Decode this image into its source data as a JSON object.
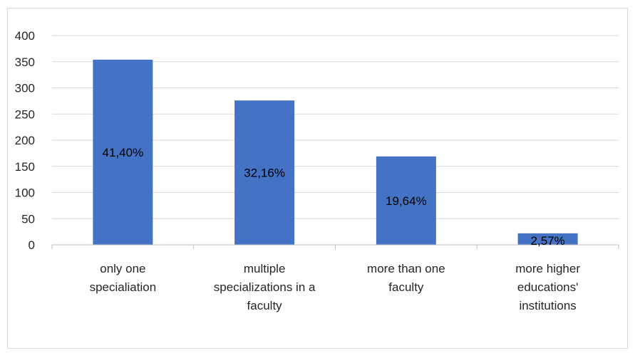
{
  "chart_data": {
    "type": "bar",
    "categories": [
      [
        "only one",
        "specialiation"
      ],
      [
        "multiple",
        "specializations in a",
        "faculty"
      ],
      [
        "more than one",
        "faculty"
      ],
      [
        "more higher",
        "educations'",
        "institutions"
      ]
    ],
    "values": [
      354,
      276,
      169,
      22
    ],
    "data_labels": [
      "41,40%",
      "32,16%",
      "19,64%",
      "2,57%"
    ],
    "ylim": [
      0,
      400
    ],
    "yticks": [
      0,
      50,
      100,
      150,
      200,
      250,
      300,
      350,
      400
    ],
    "grid": true,
    "legend": "none",
    "title": "",
    "xlabel": "",
    "ylabel": "",
    "colors": {
      "bar": "#4472c4",
      "grid": "#d9d9d9",
      "axis": "#bfbfbf",
      "text": "#262626"
    }
  }
}
